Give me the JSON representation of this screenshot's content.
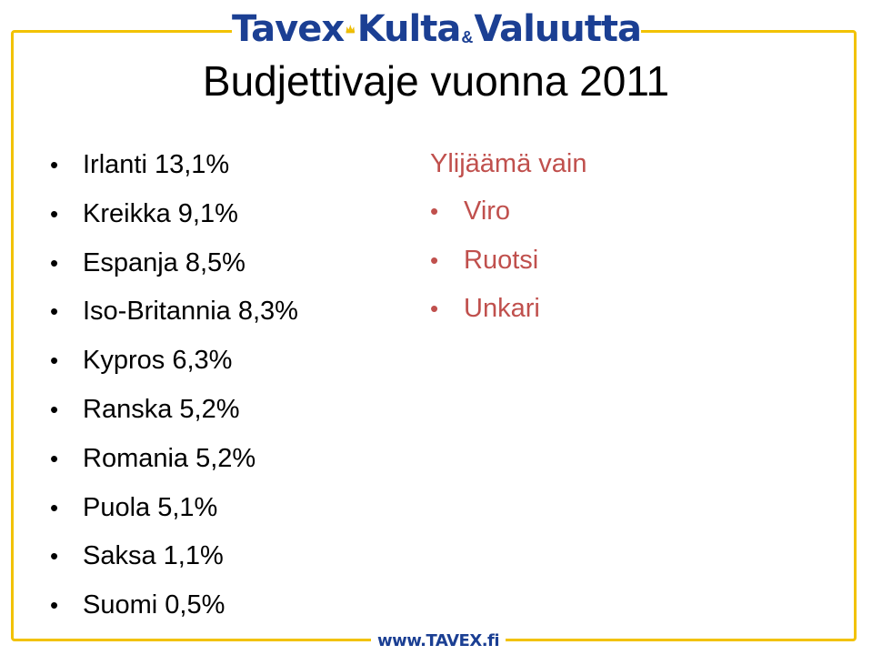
{
  "logo": {
    "word1": "Tavex",
    "word2": "Kulta",
    "ampersand": "&",
    "word3": "Valuutta",
    "icon": "crown-icon",
    "brand_color": "#1b3f93",
    "crown_color": "#f2c200"
  },
  "slide": {
    "title": "Budjettivaje vuonna 2011",
    "deficits": [
      "Irlanti 13,1%",
      "Kreikka 9,1%",
      "Espanja 8,5%",
      "Iso-Britannia 8,3%",
      "Kypros 6,3%",
      "Ranska 5,2%",
      "Romania 5,2%",
      "Puola 5,1%",
      "Saksa 1,1%",
      "Suomi 0,5%"
    ],
    "surplus_heading": "Ylijäämä vain",
    "surplus": [
      "Viro",
      "Ruotsi",
      "Unkari"
    ],
    "accent_color": "#c0504d",
    "frame_color": "#f2c200"
  },
  "footer": {
    "url": "www.TAVEX.fi"
  }
}
